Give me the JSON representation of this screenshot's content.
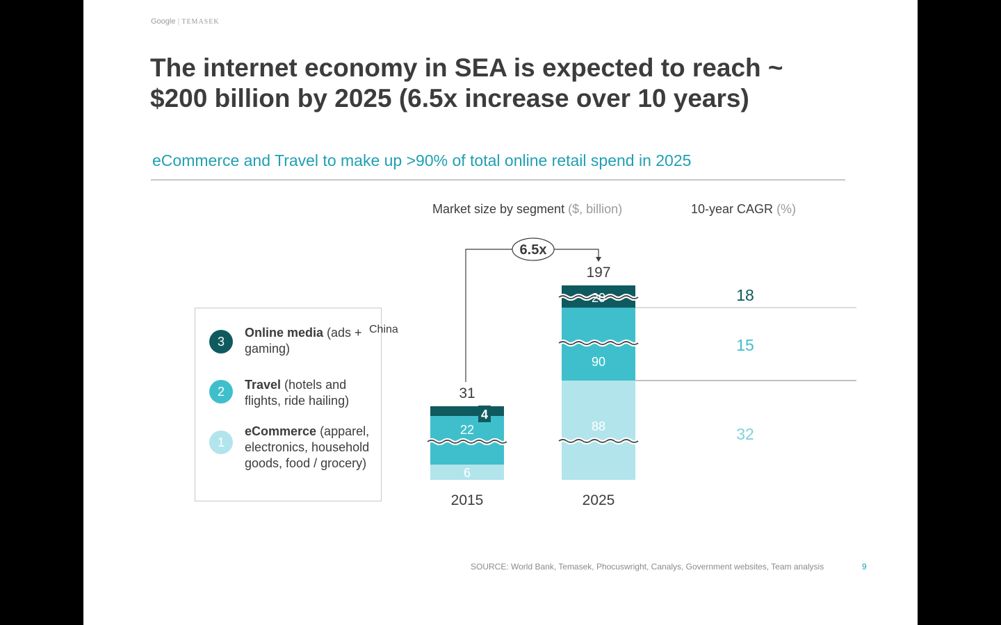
{
  "brand": {
    "google": "Google",
    "temasek": "TEMASEK"
  },
  "title": "The internet economy in SEA is expected to reach ~ $200 billion by 2025 (6.5x increase over 10 years)",
  "subtitle": "eCommerce and Travel to make up >90% of total online retail spend in 2025",
  "headers": {
    "market_size": "Market size by segment",
    "market_size_unit": "($, billion)",
    "cagr": "10-year CAGR",
    "cagr_unit": "(%)"
  },
  "legend": [
    {
      "number": "3",
      "bold": "Online media",
      "rest": " (ads + gaming)",
      "color": "#0f5a5e"
    },
    {
      "number": "2",
      "bold": "Travel",
      "rest": " (hotels and flights, ride hailing)",
      "color": "#3fbfcc"
    },
    {
      "number": "1",
      "bold": "eCommerce",
      "rest": " (apparel, electronics, household goods, food / grocery)",
      "color": "#b2e4ec"
    }
  ],
  "china_label": "China",
  "source": "SOURCE: World Bank, Temasek, Phocuswright, Canalys, Government websites, Team analysis",
  "page_number": "9",
  "chart_data": {
    "type": "bar",
    "stacked": true,
    "title": "Market size by segment ($, billion)",
    "categories": [
      "2015",
      "2025"
    ],
    "series": [
      {
        "name": "eCommerce",
        "values": [
          6,
          88
        ],
        "color": "#b2e4ec",
        "label_color": "#ffffff"
      },
      {
        "name": "Travel",
        "values": [
          22,
          90
        ],
        "color": "#3fbfcc",
        "label_color": "#ffffff"
      },
      {
        "name": "Online media",
        "values": [
          4,
          20
        ],
        "color": "#0f5a5e",
        "label_color": "#ffffff"
      }
    ],
    "totals": [
      31,
      197
    ],
    "multiplier_label": "6.5x",
    "axis_breaks": true,
    "cagr": {
      "label": "10-year CAGR (%)",
      "values": [
        {
          "segment": "Online media",
          "value": 18,
          "color": "#0f5a5e"
        },
        {
          "segment": "Travel",
          "value": 15,
          "color": "#3fbfcc"
        },
        {
          "segment": "eCommerce",
          "value": 32,
          "color": "#7fd0dc"
        }
      ]
    }
  }
}
